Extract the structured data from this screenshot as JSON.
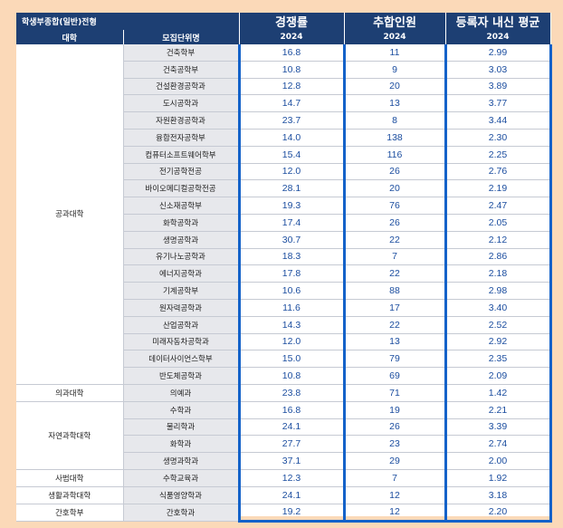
{
  "header": {
    "admission_type": "학생부종합(일반)전형",
    "competition_label": "경쟁률",
    "additional_label": "추합인원",
    "gpa_label": "등록자 내신 평균",
    "college_label": "대학",
    "unit_label": "모집단위명",
    "year_competition": "2024",
    "year_additional": "2024",
    "year_gpa": "2024"
  },
  "rows": [
    {
      "college": "공과대학",
      "unit": "건축학부",
      "rate": "16.8",
      "extra": "11",
      "gpa": "2.99"
    },
    {
      "college": "공과대학",
      "unit": "건축공학부",
      "rate": "10.8",
      "extra": "9",
      "gpa": "3.03"
    },
    {
      "college": "공과대학",
      "unit": "건설환경공학과",
      "rate": "12.8",
      "extra": "20",
      "gpa": "3.89"
    },
    {
      "college": "공과대학",
      "unit": "도시공학과",
      "rate": "14.7",
      "extra": "13",
      "gpa": "3.77"
    },
    {
      "college": "공과대학",
      "unit": "자원환경공학과",
      "rate": "23.7",
      "extra": "8",
      "gpa": "3.44"
    },
    {
      "college": "공과대학",
      "unit": "융합전자공학부",
      "rate": "14.0",
      "extra": "138",
      "gpa": "2.30"
    },
    {
      "college": "공과대학",
      "unit": "컴퓨터소프트웨어학부",
      "rate": "15.4",
      "extra": "116",
      "gpa": "2.25"
    },
    {
      "college": "공과대학",
      "unit": "전기공학전공",
      "rate": "12.0",
      "extra": "26",
      "gpa": "2.76"
    },
    {
      "college": "공과대학",
      "unit": "바이오메디컬공학전공",
      "rate": "28.1",
      "extra": "20",
      "gpa": "2.19"
    },
    {
      "college": "공과대학",
      "unit": "신소재공학부",
      "rate": "19.3",
      "extra": "76",
      "gpa": "2.47"
    },
    {
      "college": "공과대학",
      "unit": "화학공학과",
      "rate": "17.4",
      "extra": "26",
      "gpa": "2.05"
    },
    {
      "college": "공과대학",
      "unit": "생명공학과",
      "rate": "30.7",
      "extra": "22",
      "gpa": "2.12"
    },
    {
      "college": "공과대학",
      "unit": "유기나노공학과",
      "rate": "18.3",
      "extra": "7",
      "gpa": "2.86"
    },
    {
      "college": "공과대학",
      "unit": "에너지공학과",
      "rate": "17.8",
      "extra": "22",
      "gpa": "2.18"
    },
    {
      "college": "공과대학",
      "unit": "기계공학부",
      "rate": "10.6",
      "extra": "88",
      "gpa": "2.98"
    },
    {
      "college": "공과대학",
      "unit": "원자력공학과",
      "rate": "11.6",
      "extra": "17",
      "gpa": "3.40"
    },
    {
      "college": "공과대학",
      "unit": "산업공학과",
      "rate": "14.3",
      "extra": "22",
      "gpa": "2.52"
    },
    {
      "college": "공과대학",
      "unit": "미래자동차공학과",
      "rate": "12.0",
      "extra": "13",
      "gpa": "2.92"
    },
    {
      "college": "공과대학",
      "unit": "데이터사이언스학부",
      "rate": "15.0",
      "extra": "79",
      "gpa": "2.35"
    },
    {
      "college": "공과대학",
      "unit": "반도체공학과",
      "rate": "10.8",
      "extra": "69",
      "gpa": "2.09"
    },
    {
      "college": "의과대학",
      "unit": "의예과",
      "rate": "23.8",
      "extra": "71",
      "gpa": "1.42"
    },
    {
      "college": "자연과학대학",
      "unit": "수학과",
      "rate": "16.8",
      "extra": "19",
      "gpa": "2.21"
    },
    {
      "college": "자연과학대학",
      "unit": "물리학과",
      "rate": "24.1",
      "extra": "26",
      "gpa": "3.39"
    },
    {
      "college": "자연과학대학",
      "unit": "화학과",
      "rate": "27.7",
      "extra": "23",
      "gpa": "2.74"
    },
    {
      "college": "자연과학대학",
      "unit": "생명과학과",
      "rate": "37.1",
      "extra": "29",
      "gpa": "2.00"
    },
    {
      "college": "사범대학",
      "unit": "수학교육과",
      "rate": "12.3",
      "extra": "7",
      "gpa": "1.92"
    },
    {
      "college": "생활과학대학",
      "unit": "식품영양학과",
      "rate": "24.1",
      "extra": "12",
      "gpa": "3.18"
    },
    {
      "college": "간호학부",
      "unit": "간호학과",
      "rate": "19.2",
      "extra": "12",
      "gpa": "2.20"
    }
  ]
}
